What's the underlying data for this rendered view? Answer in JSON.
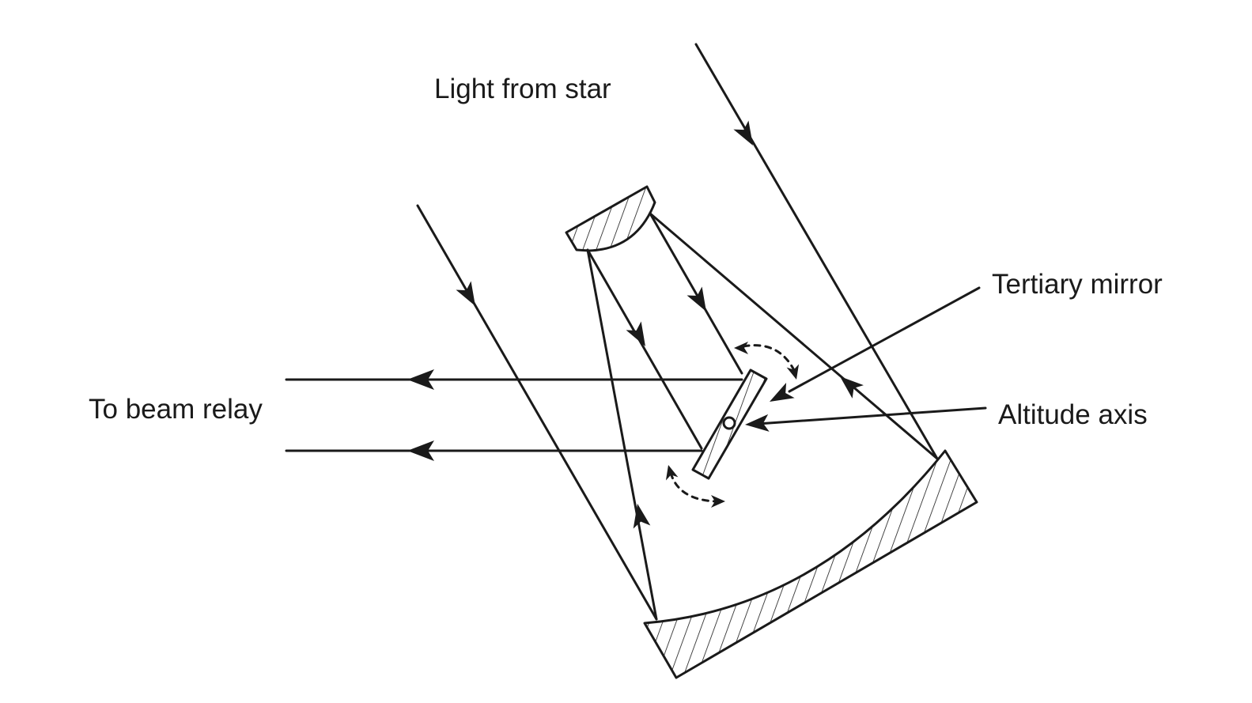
{
  "labels": {
    "light_from_star": "Light from star",
    "tertiary_mirror": "Tertiary mirror",
    "altitude_axis": "Altitude axis",
    "to_beam_relay": "To beam relay"
  },
  "colors": {
    "ink": "#1a1a1a",
    "background": "#ffffff"
  }
}
